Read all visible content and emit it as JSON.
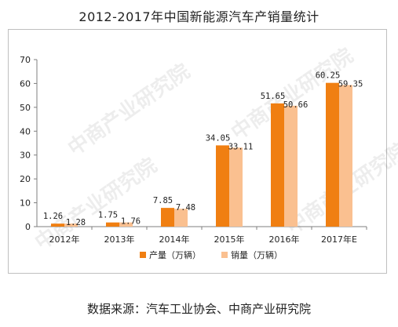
{
  "title": "2012-2017年中国新能源汽车产销量统计",
  "source": "数据来源：汽车工业协会、中商产业研究院",
  "watermark": "中商产业研究院",
  "chart_data": {
    "type": "bar",
    "categories": [
      "2012年",
      "2013年",
      "2014年",
      "2015年",
      "2016年",
      "2017年E"
    ],
    "series": [
      {
        "name": "产量（万辆）",
        "values": [
          1.26,
          1.75,
          7.85,
          34.05,
          51.65,
          60.25
        ],
        "color": "#f07f12"
      },
      {
        "name": "销量（万辆）",
        "values": [
          1.28,
          1.76,
          7.48,
          33.11,
          50.66,
          59.35
        ],
        "color": "#fac090"
      }
    ],
    "value_labels": [
      [
        "1.26",
        "1.75",
        "7.85",
        "34.05",
        "51.65",
        "60.25"
      ],
      [
        "1.28",
        "1.76",
        "7.48",
        "33.11",
        "50.66",
        "59.35"
      ]
    ],
    "yticks": [
      "0",
      "10",
      "20",
      "30",
      "40",
      "50",
      "60",
      "70"
    ],
    "ylim": [
      0,
      70
    ],
    "grid": false,
    "legend_position": "bottom-center"
  }
}
